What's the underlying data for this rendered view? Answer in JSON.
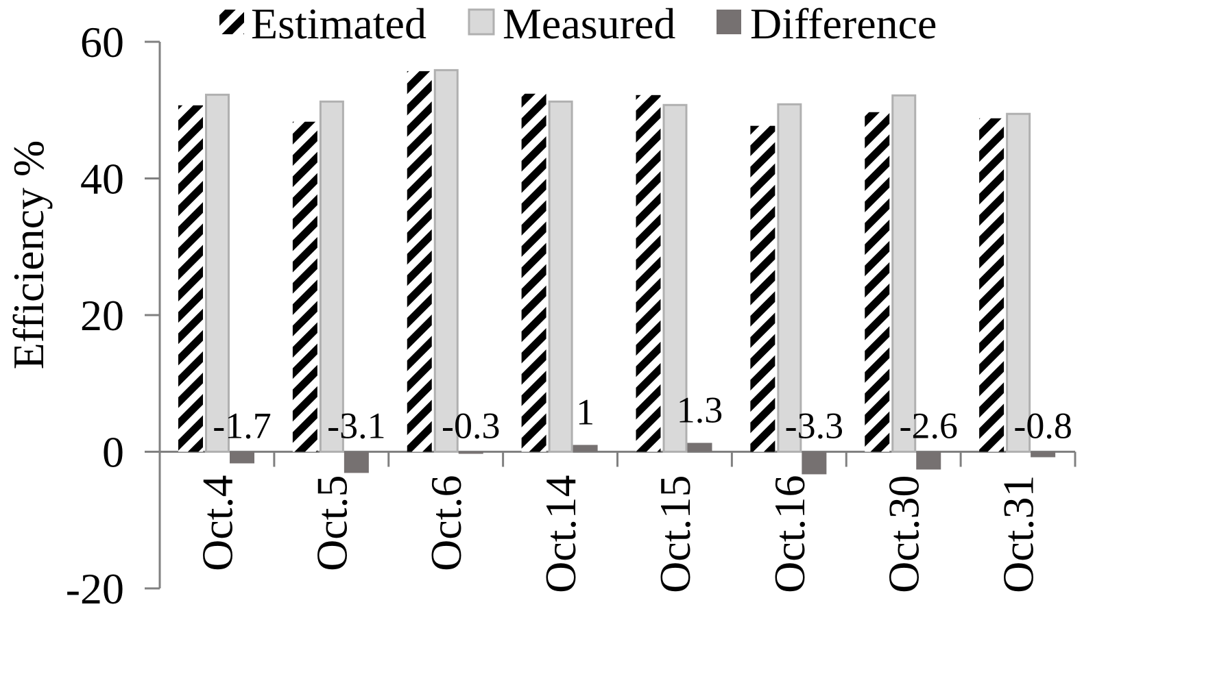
{
  "chart_data": {
    "type": "bar",
    "title": "",
    "xlabel": "",
    "ylabel": "Efficiency %",
    "ylim": [
      -20,
      60
    ],
    "yticks": [
      -20,
      0,
      20,
      40,
      60
    ],
    "grid": false,
    "legend_position": "top",
    "categories": [
      "Oct.4",
      "Oct.5",
      "Oct.6",
      "Oct.14",
      "Oct.15",
      "Oct.16",
      "Oct.30",
      "Oct.31"
    ],
    "series": [
      {
        "name": "Estimated",
        "values": [
          50.7,
          48.3,
          55.7,
          52.4,
          52.2,
          47.7,
          49.7,
          48.8
        ],
        "color": "#000000",
        "pattern": "diagonal-stripes"
      },
      {
        "name": "Measured",
        "values": [
          52.4,
          51.4,
          56.0,
          51.4,
          50.9,
          51.0,
          52.3,
          49.6
        ],
        "color": "#d9d9d9",
        "border": "#b0b0b0"
      },
      {
        "name": "Difference",
        "values": [
          -1.7,
          -3.1,
          -0.3,
          1,
          1.3,
          -3.3,
          -2.6,
          -0.8
        ],
        "color": "#767171",
        "data_labels": [
          "-1.7",
          "-3.1",
          "-0.3",
          "1",
          "1.3",
          "-3.3",
          "-2.6",
          "-0.8"
        ]
      }
    ]
  }
}
